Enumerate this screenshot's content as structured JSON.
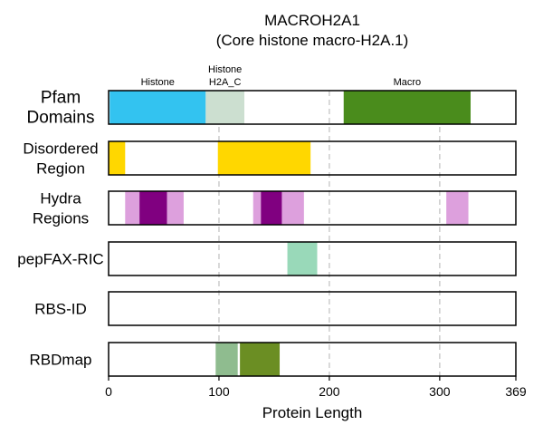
{
  "chart_data": {
    "type": "domain-track",
    "title": "MACROH2A1",
    "subtitle": "(Core histone macro-H2A.1)",
    "xlabel": "Protein Length",
    "xlim": [
      0,
      369
    ],
    "xticks": [
      0,
      100,
      200,
      300,
      369
    ],
    "gridlines_at": [
      100,
      200,
      300
    ],
    "tracks": [
      {
        "label_lines": [
          "Pfam",
          "Domains"
        ],
        "segments": [
          {
            "start": 1,
            "end": 88,
            "color": "#33C3F0",
            "label": "Histone"
          },
          {
            "start": 88,
            "end": 123,
            "color": "#CCDFD0",
            "label_lines": [
              "Histone",
              "H2A_C"
            ]
          },
          {
            "start": 213,
            "end": 328,
            "color": "#4A8C1C",
            "label": "Macro"
          }
        ]
      },
      {
        "label_lines": [
          "Disordered",
          "Region"
        ],
        "segments": [
          {
            "start": 0,
            "end": 15,
            "color": "#FFD700"
          },
          {
            "start": 99,
            "end": 183,
            "color": "#FFD700"
          }
        ]
      },
      {
        "label_lines": [
          "Hydra",
          "Regions"
        ],
        "segments": [
          {
            "start": 15,
            "end": 28,
            "color": "#DDA0DD"
          },
          {
            "start": 28,
            "end": 53,
            "color": "#800080"
          },
          {
            "start": 53,
            "end": 68,
            "color": "#DDA0DD"
          },
          {
            "start": 131,
            "end": 138,
            "color": "#DDA0DD"
          },
          {
            "start": 138,
            "end": 157,
            "color": "#800080"
          },
          {
            "start": 157,
            "end": 177,
            "color": "#DDA0DD"
          },
          {
            "start": 306,
            "end": 326,
            "color": "#DDA0DD"
          }
        ]
      },
      {
        "label_lines": [
          "pepFAX-RIC"
        ],
        "segments": [
          {
            "start": 162,
            "end": 189,
            "color": "#99D9B9"
          }
        ]
      },
      {
        "label_lines": [
          "RBS-ID"
        ],
        "segments": []
      },
      {
        "label_lines": [
          "RBDmap"
        ],
        "segments": [
          {
            "start": 97,
            "end": 117,
            "color": "#8FBC8F"
          },
          {
            "start": 119,
            "end": 155,
            "color": "#6B8E23"
          }
        ]
      }
    ]
  }
}
